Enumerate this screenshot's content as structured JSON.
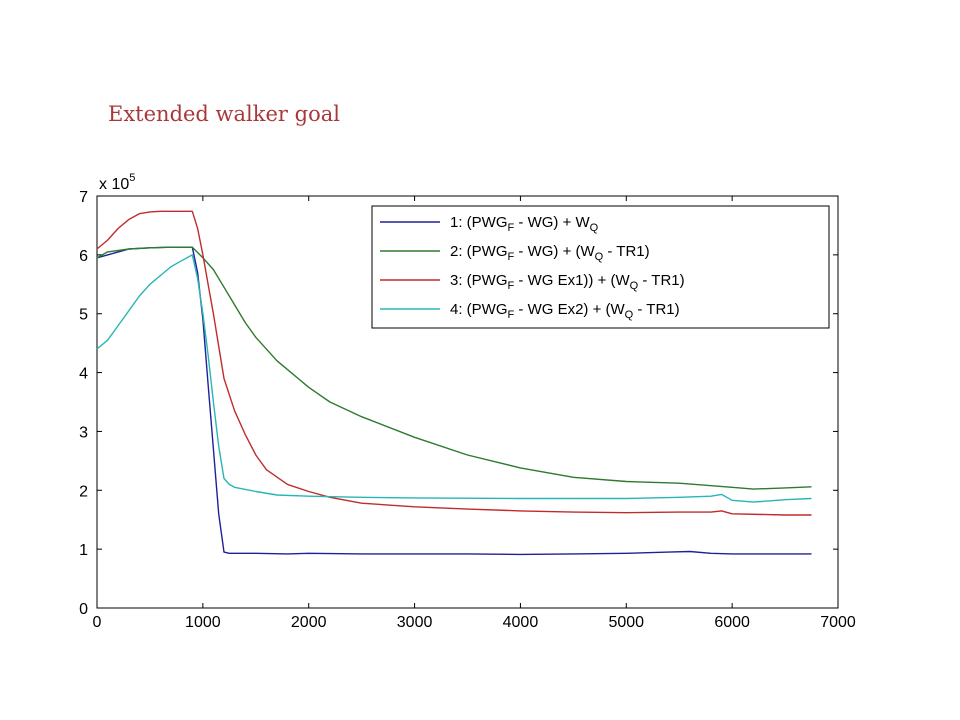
{
  "slide": {
    "title": "Extended walker goal"
  },
  "chart_data": {
    "type": "line",
    "title": "",
    "xlabel": "",
    "ylabel": "",
    "xlim": [
      0,
      7000
    ],
    "ylim": [
      0,
      7
    ],
    "y_multiplier_label": {
      "prefix": "x 10",
      "exponent": "5"
    },
    "xticks": [
      "0",
      "1000",
      "2000",
      "3000",
      "4000",
      "5000",
      "6000",
      "7000"
    ],
    "yticks": [
      "0",
      "1",
      "2",
      "3",
      "4",
      "5",
      "6",
      "7"
    ],
    "legend_position": "top-right",
    "grid": false,
    "series": [
      {
        "name": "1: (PWG_F - WG) + W_Q",
        "legend_parts": [
          [
            "1:  (PWG",
            ""
          ],
          [
            "F",
            "sub"
          ],
          [
            " - WG) + W",
            ""
          ],
          [
            "Q",
            "sub"
          ]
        ],
        "color": "#20209a",
        "x": [
          0,
          100,
          300,
          500,
          700,
          900,
          950,
          1000,
          1050,
          1100,
          1150,
          1200,
          1250,
          1300,
          1500,
          1800,
          2000,
          2500,
          3000,
          3500,
          4000,
          4500,
          5000,
          5400,
          5600,
          5800,
          6000,
          6300,
          6600,
          6750
        ],
        "y": [
          5.95,
          6.0,
          6.1,
          6.12,
          6.13,
          6.13,
          5.7,
          4.9,
          3.8,
          2.7,
          1.6,
          0.95,
          0.93,
          0.93,
          0.93,
          0.92,
          0.93,
          0.92,
          0.92,
          0.92,
          0.91,
          0.92,
          0.93,
          0.95,
          0.96,
          0.93,
          0.92,
          0.92,
          0.92,
          0.92
        ]
      },
      {
        "name": "2: (PWG_F - WG) + (W_Q - TR1)",
        "legend_parts": [
          [
            "2:  (PWG",
            ""
          ],
          [
            "F",
            "sub"
          ],
          [
            " - WG) + (W",
            ""
          ],
          [
            "Q",
            "sub"
          ],
          [
            " - TR1)",
            ""
          ]
        ],
        "color": "#2e7a2e",
        "x": [
          0,
          100,
          300,
          500,
          700,
          900,
          1000,
          1100,
          1200,
          1300,
          1400,
          1500,
          1700,
          2000,
          2200,
          2500,
          3000,
          3500,
          4000,
          4500,
          5000,
          5500,
          6000,
          6200,
          6500,
          6750
        ],
        "y": [
          5.95,
          6.05,
          6.1,
          6.12,
          6.13,
          6.13,
          5.95,
          5.75,
          5.45,
          5.15,
          4.85,
          4.6,
          4.2,
          3.75,
          3.5,
          3.25,
          2.9,
          2.6,
          2.38,
          2.22,
          2.15,
          2.12,
          2.05,
          2.02,
          2.04,
          2.06
        ]
      },
      {
        "name": "3: (PWG_F - WG Ex1)) + (W_Q - TR1)",
        "legend_parts": [
          [
            "3:  (PWG",
            ""
          ],
          [
            "F",
            "sub"
          ],
          [
            " - WG Ex1)) + (W",
            ""
          ],
          [
            "Q",
            "sub"
          ],
          [
            " -  TR1)",
            ""
          ]
        ],
        "color": "#c02c2c",
        "x": [
          0,
          100,
          200,
          300,
          400,
          500,
          600,
          700,
          800,
          900,
          950,
          1000,
          1050,
          1100,
          1150,
          1200,
          1300,
          1400,
          1500,
          1600,
          1800,
          2000,
          2200,
          2500,
          3000,
          3500,
          4000,
          4500,
          5000,
          5500,
          5800,
          5900,
          6000,
          6500,
          6750
        ],
        "y": [
          6.1,
          6.25,
          6.45,
          6.6,
          6.7,
          6.73,
          6.74,
          6.74,
          6.74,
          6.74,
          6.45,
          6.0,
          5.5,
          5.0,
          4.45,
          3.9,
          3.35,
          2.95,
          2.6,
          2.35,
          2.1,
          1.98,
          1.88,
          1.78,
          1.72,
          1.68,
          1.65,
          1.63,
          1.62,
          1.63,
          1.63,
          1.65,
          1.6,
          1.58,
          1.58
        ]
      },
      {
        "name": "4: (PWG_F - WG Ex2) + (W_Q - TR1)",
        "legend_parts": [
          [
            "4:  (PWG",
            ""
          ],
          [
            "F",
            "sub"
          ],
          [
            " - WG Ex2) + (W",
            ""
          ],
          [
            "Q",
            "sub"
          ],
          [
            " - TR1)",
            ""
          ]
        ],
        "color": "#2ab5b5",
        "x": [
          0,
          100,
          200,
          300,
          400,
          500,
          600,
          700,
          800,
          900,
          950,
          1000,
          1050,
          1100,
          1150,
          1200,
          1250,
          1300,
          1500,
          1700,
          2000,
          2500,
          3000,
          4000,
          5000,
          5500,
          5800,
          5900,
          6000,
          6200,
          6500,
          6750
        ],
        "y": [
          4.4,
          4.55,
          4.8,
          5.05,
          5.3,
          5.5,
          5.65,
          5.8,
          5.9,
          6.0,
          5.6,
          5.0,
          4.3,
          3.5,
          2.75,
          2.2,
          2.1,
          2.05,
          1.98,
          1.92,
          1.9,
          1.88,
          1.87,
          1.86,
          1.86,
          1.88,
          1.9,
          1.93,
          1.83,
          1.8,
          1.84,
          1.86
        ]
      }
    ]
  }
}
